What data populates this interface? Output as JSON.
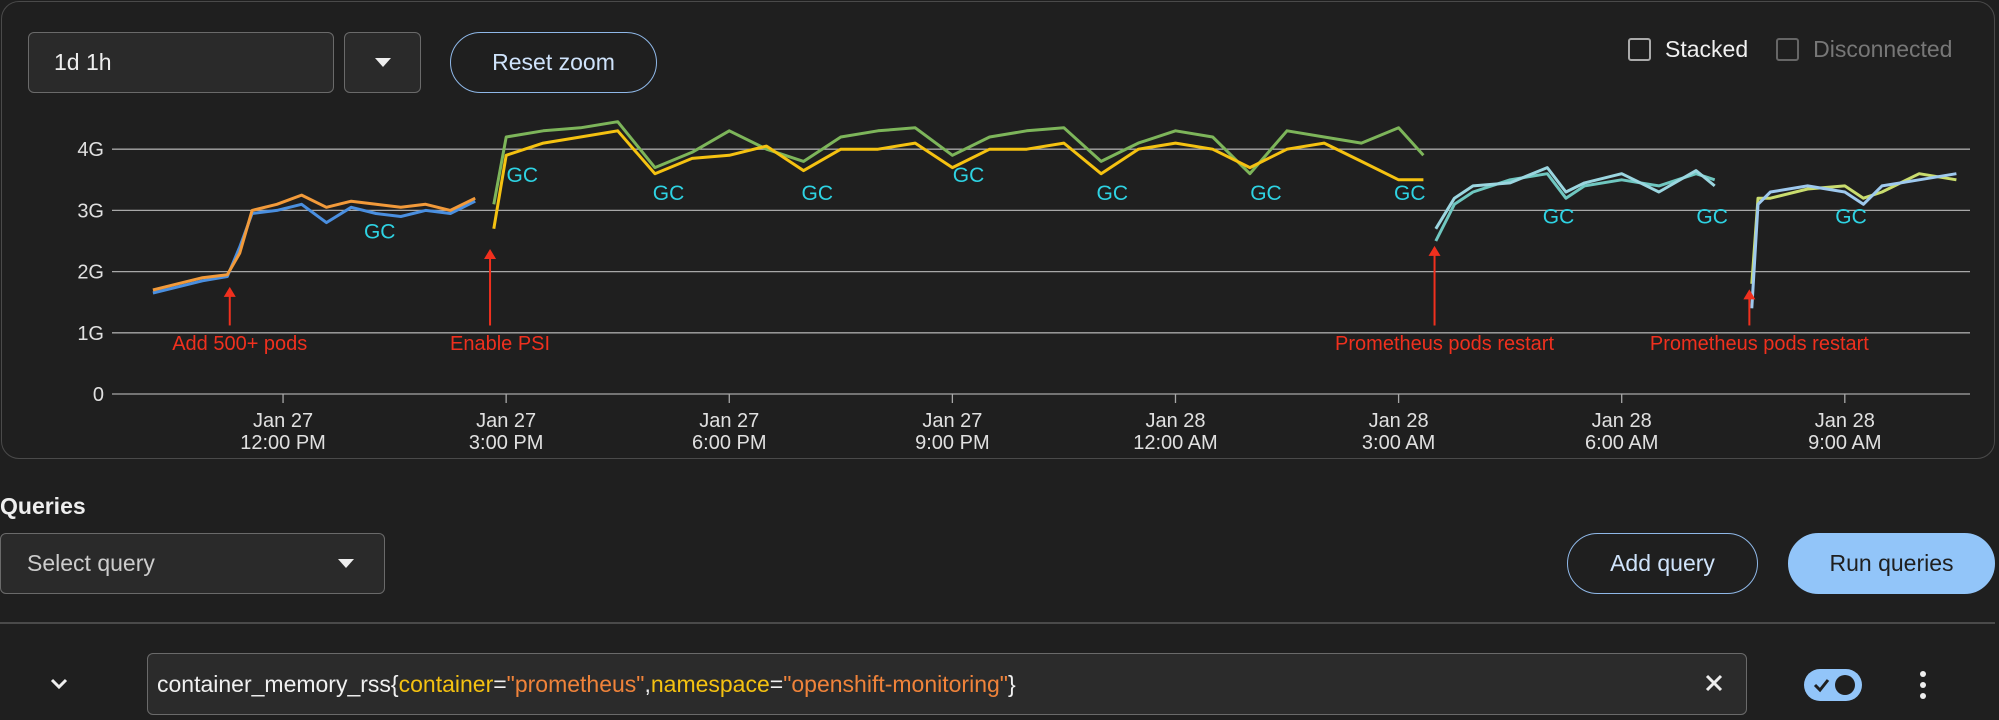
{
  "toolbar": {
    "time_range": "1d 1h",
    "reset_zoom": "Reset zoom",
    "checkboxes": [
      {
        "label": "Stacked",
        "enabled": true
      },
      {
        "label": "Disconnected",
        "enabled": false
      }
    ]
  },
  "chart_data": {
    "type": "line",
    "xlim": [
      "Jan 27 9:42 AM",
      "Jan 28 10:41 AM"
    ],
    "xticks": [
      "Jan 27 12:00 PM",
      "Jan 27 3:00 PM",
      "Jan 27 6:00 PM",
      "Jan 27 9:00 PM",
      "Jan 28 12:00 AM",
      "Jan 28 3:00 AM",
      "Jan 28 6:00 AM",
      "Jan 28 9:00 AM"
    ],
    "ylim": [
      0,
      4.5
    ],
    "yticks": [
      0,
      {
        "value": 1,
        "label": "1G"
      },
      {
        "value": 2,
        "label": "2G"
      },
      {
        "value": 3,
        "label": "3G"
      },
      {
        "value": 4,
        "label": "4G"
      }
    ],
    "grid": true,
    "series": [
      {
        "color": "#4a8fe0",
        "x": [
          "Jan 27 10:15 AM",
          "Jan 27 10:35 AM",
          "Jan 27 10:55 AM",
          "Jan 27 11:15 AM",
          "Jan 27 11:25 AM",
          "Jan 27 11:35 AM",
          "Jan 27 11:55 AM",
          "Jan 27 12:15 PM",
          "Jan 27 12:35 PM",
          "Jan 27 12:55 PM",
          "Jan 27 1:15 PM",
          "Jan 27 1:35 PM",
          "Jan 27 1:55 PM",
          "Jan 27 2:15 PM",
          "Jan 27 2:35 PM"
        ],
        "values": [
          1.65,
          1.75,
          1.85,
          1.92,
          2.4,
          2.95,
          3.0,
          3.1,
          2.8,
          3.05,
          2.95,
          2.9,
          3.0,
          2.95,
          3.15
        ]
      },
      {
        "color": "#f29a3a",
        "x": [
          "Jan 27 10:15 AM",
          "Jan 27 10:35 AM",
          "Jan 27 10:55 AM",
          "Jan 27 11:15 AM",
          "Jan 27 11:25 AM",
          "Jan 27 11:35 AM",
          "Jan 27 11:55 AM",
          "Jan 27 12:15 PM",
          "Jan 27 12:35 PM",
          "Jan 27 12:55 PM",
          "Jan 27 1:15 PM",
          "Jan 27 1:35 PM",
          "Jan 27 1:55 PM",
          "Jan 27 2:15 PM",
          "Jan 27 2:35 PM"
        ],
        "values": [
          1.7,
          1.8,
          1.9,
          1.95,
          2.3,
          3.0,
          3.1,
          3.25,
          3.05,
          3.15,
          3.1,
          3.05,
          3.1,
          3.0,
          3.2
        ]
      },
      {
        "color": "#7db55a",
        "x": [
          "Jan 27 2:50 PM",
          "Jan 27 3:00 PM",
          "Jan 27 3:30 PM",
          "Jan 27 4:00 PM",
          "Jan 27 4:30 PM",
          "Jan 27 5:00 PM",
          "Jan 27 5:30 PM",
          "Jan 27 6:00 PM",
          "Jan 27 6:30 PM",
          "Jan 27 7:00 PM",
          "Jan 27 7:30 PM",
          "Jan 27 8:00 PM",
          "Jan 27 8:30 PM",
          "Jan 27 9:00 PM",
          "Jan 27 9:30 PM",
          "Jan 27 10:00 PM",
          "Jan 27 10:30 PM",
          "Jan 27 11:00 PM",
          "Jan 27 11:30 PM",
          "Jan 28 12:00 AM",
          "Jan 28 12:30 AM",
          "Jan 28 1:00 AM",
          "Jan 28 1:30 AM",
          "Jan 28 2:00 AM",
          "Jan 28 2:30 AM",
          "Jan 28 3:00 AM",
          "Jan 28 3:20 AM"
        ],
        "values": [
          3.1,
          4.2,
          4.3,
          4.35,
          4.45,
          3.7,
          3.95,
          4.3,
          4.0,
          3.8,
          4.2,
          4.3,
          4.35,
          3.9,
          4.2,
          4.3,
          4.35,
          3.8,
          4.1,
          4.3,
          4.2,
          3.6,
          4.3,
          4.2,
          4.1,
          4.35,
          3.9
        ]
      },
      {
        "color": "#f5c211",
        "x": [
          "Jan 27 2:50 PM",
          "Jan 27 3:00 PM",
          "Jan 27 3:30 PM",
          "Jan 27 4:00 PM",
          "Jan 27 4:30 PM",
          "Jan 27 5:00 PM",
          "Jan 27 5:30 PM",
          "Jan 27 6:00 PM",
          "Jan 27 6:30 PM",
          "Jan 27 7:00 PM",
          "Jan 27 7:30 PM",
          "Jan 27 8:00 PM",
          "Jan 27 8:30 PM",
          "Jan 27 9:00 PM",
          "Jan 27 9:30 PM",
          "Jan 27 10:00 PM",
          "Jan 27 10:30 PM",
          "Jan 27 11:00 PM",
          "Jan 27 11:30 PM",
          "Jan 28 12:00 AM",
          "Jan 28 12:30 AM",
          "Jan 28 1:00 AM",
          "Jan 28 1:30 AM",
          "Jan 28 2:00 AM",
          "Jan 28 2:30 AM",
          "Jan 28 3:00 AM",
          "Jan 28 3:20 AM"
        ],
        "values": [
          2.7,
          3.9,
          4.1,
          4.2,
          4.3,
          3.6,
          3.85,
          3.9,
          4.05,
          3.65,
          4.0,
          4.0,
          4.1,
          3.7,
          4.0,
          4.0,
          4.1,
          3.6,
          4.0,
          4.1,
          4.0,
          3.7,
          4.0,
          4.1,
          3.8,
          3.5,
          3.5
        ]
      },
      {
        "color": "#6fc7c0",
        "x": [
          "Jan 28 3:30 AM",
          "Jan 28 3:45 AM",
          "Jan 28 4:00 AM",
          "Jan 28 4:30 AM",
          "Jan 28 5:00 AM",
          "Jan 28 5:15 AM",
          "Jan 28 5:30 AM",
          "Jan 28 6:00 AM",
          "Jan 28 6:30 AM",
          "Jan 28 7:00 AM",
          "Jan 28 7:15 AM"
        ],
        "values": [
          2.5,
          3.1,
          3.3,
          3.5,
          3.6,
          3.2,
          3.4,
          3.5,
          3.4,
          3.6,
          3.5
        ]
      },
      {
        "color": "#9bd6e0",
        "x": [
          "Jan 28 3:30 AM",
          "Jan 28 3:45 AM",
          "Jan 28 4:00 AM",
          "Jan 28 4:30 AM",
          "Jan 28 5:00 AM",
          "Jan 28 5:15 AM",
          "Jan 28 5:30 AM",
          "Jan 28 6:00 AM",
          "Jan 28 6:30 AM",
          "Jan 28 7:00 AM",
          "Jan 28 7:15 AM"
        ],
        "values": [
          2.7,
          3.2,
          3.4,
          3.45,
          3.7,
          3.3,
          3.45,
          3.6,
          3.3,
          3.65,
          3.4
        ]
      },
      {
        "color": "#c9dc6e",
        "x": [
          "Jan 28 7:45 AM",
          "Jan 28 7:50 AM",
          "Jan 28 8:00 AM",
          "Jan 28 8:30 AM",
          "Jan 28 9:00 AM",
          "Jan 28 9:15 AM",
          "Jan 28 9:30 AM",
          "Jan 28 10:00 AM",
          "Jan 28 10:30 AM"
        ],
        "values": [
          1.8,
          3.2,
          3.2,
          3.35,
          3.4,
          3.2,
          3.3,
          3.6,
          3.5
        ]
      },
      {
        "color": "#9ec9ee",
        "x": [
          "Jan 28 7:45 AM",
          "Jan 28 7:50 AM",
          "Jan 28 8:00 AM",
          "Jan 28 8:30 AM",
          "Jan 28 9:00 AM",
          "Jan 28 9:15 AM",
          "Jan 28 9:30 AM",
          "Jan 28 10:00 AM",
          "Jan 28 10:30 AM"
        ],
        "values": [
          1.4,
          3.1,
          3.3,
          3.4,
          3.3,
          3.1,
          3.4,
          3.5,
          3.6
        ]
      }
    ],
    "gc_labels": [
      {
        "text": "GC",
        "x": "Jan 27 1:18 PM",
        "y": 2.54
      },
      {
        "text": "GC",
        "x": "Jan 27 3:13 PM",
        "y": 3.46
      },
      {
        "text": "GC",
        "x": "Jan 27 5:11 PM",
        "y": 3.17
      },
      {
        "text": "GC",
        "x": "Jan 27 7:11 PM",
        "y": 3.17
      },
      {
        "text": "GC",
        "x": "Jan 27 9:13 PM",
        "y": 3.46
      },
      {
        "text": "GC",
        "x": "Jan 27 11:09 PM",
        "y": 3.17
      },
      {
        "text": "GC",
        "x": "Jan 28 1:13 AM",
        "y": 3.17
      },
      {
        "text": "GC",
        "x": "Jan 28 3:09 AM",
        "y": 3.17
      },
      {
        "text": "GC",
        "x": "Jan 28 5:09 AM",
        "y": 2.79
      },
      {
        "text": "GC",
        "x": "Jan 28 7:13 AM",
        "y": 2.79
      },
      {
        "text": "GC",
        "x": "Jan 28 9:05 AM",
        "y": 2.79
      }
    ],
    "annotations": [
      {
        "text": "Add 500+ pods",
        "x": "Jan 27 11:17 AM",
        "y": 1.75
      },
      {
        "text": "Enable PSI",
        "x": "Jan 27 2:47 PM",
        "y": 2.37
      },
      {
        "text": "Prometheus pods restart",
        "x": "Jan 28 3:29 AM",
        "y": 2.42
      },
      {
        "text": "Prometheus pods restart",
        "x": "Jan 28 7:43 AM",
        "y": 1.71
      }
    ]
  },
  "queries": {
    "title": "Queries",
    "select_placeholder": "Select query",
    "add_button": "Add query",
    "run_button": "Run queries",
    "query": {
      "enabled": true,
      "tokens": [
        {
          "text": "container_memory_rss{",
          "kind": "plain"
        },
        {
          "text": "container",
          "kind": "label"
        },
        {
          "text": "=",
          "kind": "plain"
        },
        {
          "text": "\"prometheus\"",
          "kind": "string"
        },
        {
          "text": ",",
          "kind": "plain"
        },
        {
          "text": "namespace",
          "kind": "label"
        },
        {
          "text": "=",
          "kind": "plain"
        },
        {
          "text": "\"openshift-monitoring\"",
          "kind": "string"
        },
        {
          "text": "}",
          "kind": "plain"
        }
      ]
    }
  }
}
